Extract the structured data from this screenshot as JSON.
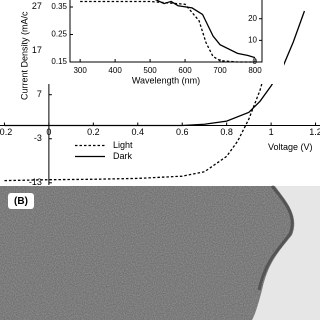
{
  "chart_data": [
    {
      "type": "line",
      "y_label": "Current Density (mA/c",
      "x_label": "Voltage (V)",
      "xlim": [
        -0.22,
        1.22
      ],
      "ylim": [
        -13.5,
        28.5
      ],
      "xticks": [
        -0.2,
        0,
        0.2,
        0.4,
        0.6,
        0.8,
        1,
        1.2
      ],
      "yticks": [
        -13,
        -3,
        7,
        17,
        27
      ],
      "series": [
        {
          "name": "Light",
          "color": "#000000",
          "dash": true,
          "x": [
            -0.2,
            0,
            0.2,
            0.4,
            0.6,
            0.7,
            0.8,
            0.85,
            0.9,
            0.95,
            1.0,
            1.05
          ],
          "values": [
            -12.5,
            -12.3,
            -12.2,
            -12,
            -11.5,
            -10.5,
            -7,
            -3.5,
            1.5,
            8,
            17,
            28
          ]
        },
        {
          "name": "Dark",
          "color": "#000000",
          "dash": false,
          "x": [
            -0.2,
            0,
            0.2,
            0.4,
            0.6,
            0.7,
            0.8,
            0.9,
            0.95,
            1.0,
            1.05,
            1.1,
            1.15
          ],
          "values": [
            0,
            0,
            0,
            0,
            0,
            0.3,
            1,
            3,
            5.5,
            9,
            13,
            19,
            26
          ]
        }
      ]
    },
    {
      "type": "line",
      "x_label": "Wavelength (nm)",
      "xlim": [
        271,
        820
      ],
      "ylim": [
        0.15,
        0.39
      ],
      "y2lim": [
        0,
        30.5
      ],
      "xticks": [
        300,
        400,
        500,
        600,
        700,
        800
      ],
      "yticks": [
        0.15,
        0.25,
        0.35
      ],
      "y2ticks": [
        0,
        10,
        20
      ],
      "series": [
        {
          "color": "#000000",
          "dash": true,
          "x": [
            300,
            400,
            500,
            600,
            640,
            660,
            680,
            700,
            750,
            800
          ],
          "values": [
            0.37,
            0.37,
            0.37,
            0.36,
            0.3,
            0.22,
            0.17,
            0.155,
            0.15,
            0.15
          ]
        },
        {
          "color": "#000000",
          "dash": false,
          "axis": "y2",
          "x": [
            500,
            540,
            560,
            580,
            620,
            650,
            680,
            700,
            750,
            780,
            800
          ],
          "values": [
            30,
            27,
            28,
            26,
            25,
            22,
            12,
            8,
            4,
            3,
            2
          ]
        }
      ]
    }
  ],
  "panel_b": {
    "label": "(B)"
  }
}
